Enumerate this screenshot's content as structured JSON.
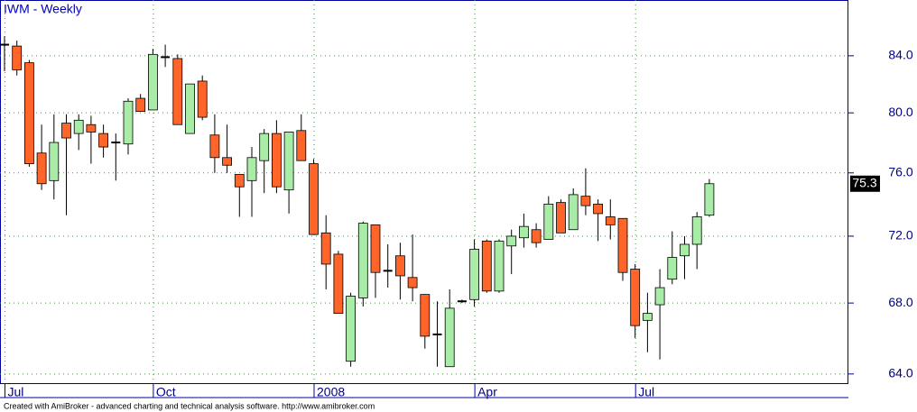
{
  "chart_data": {
    "type": "candlestick",
    "title": "IWM - Weekly",
    "footer": "Created with AmiBroker - advanced charting and technical analysis software. http://www.amibroker.com",
    "log_scale": true,
    "grid": true,
    "up_color": "#a8eca8",
    "down_color": "#ff6428",
    "doji_color": "#000000",
    "categories": [
      "Jul",
      null,
      null,
      null,
      null,
      null,
      null,
      null,
      null,
      null,
      null,
      null,
      "Oct",
      null,
      null,
      null,
      null,
      null,
      null,
      null,
      null,
      null,
      null,
      null,
      null,
      "2008",
      null,
      null,
      null,
      null,
      null,
      null,
      null,
      null,
      null,
      null,
      null,
      null,
      "Apr",
      null,
      null,
      null,
      null,
      null,
      null,
      null,
      null,
      null,
      null,
      null,
      null,
      "Jul",
      null,
      null,
      null,
      null,
      null,
      null
    ],
    "open": [
      84.8,
      84.7,
      83.5,
      77.3,
      75.5,
      79.3,
      78.6,
      79.2,
      78.6,
      78.0,
      77.9,
      81.0,
      80.2,
      83.9,
      83.8,
      78.6,
      82.2,
      78.5,
      77.0,
      75.9,
      75.5,
      76.8,
      78.6,
      74.9,
      78.8,
      76.6,
      72.2,
      70.9,
      64.7,
      68.3,
      72.7,
      69.9,
      70.8,
      69.5,
      68.5,
      66.2,
      64.4,
      68.1,
      68.2,
      71.7,
      68.7,
      71.4,
      71.9,
      72.4,
      71.8,
      74.1,
      72.4,
      74.5,
      74.0,
      73.2,
      73.1,
      70.0,
      67.0,
      67.9,
      69.4,
      70.8,
      71.5,
      73.3
    ],
    "high": [
      85.4,
      85.1,
      83.7,
      79.2,
      79.9,
      79.9,
      79.9,
      79.8,
      79.2,
      78.6,
      81.0,
      81.3,
      84.5,
      84.8,
      84.1,
      82.0,
      82.6,
      79.9,
      79.2,
      75.9,
      77.7,
      78.9,
      79.5,
      78.7,
      79.9,
      76.9,
      73.3,
      71.1,
      68.6,
      72.9,
      72.7,
      71.5,
      71.6,
      72.1,
      68.5,
      68.1,
      68.8,
      68.2,
      71.8,
      71.8,
      71.8,
      72.4,
      73.4,
      72.8,
      74.5,
      74.3,
      75.0,
      76.3,
      74.3,
      74.3,
      73.1,
      70.3,
      68.6,
      70.0,
      72.3,
      72.0,
      73.5,
      75.6
    ],
    "low": [
      82.9,
      82.6,
      76.4,
      74.9,
      74.3,
      73.3,
      77.5,
      76.6,
      77.0,
      75.5,
      77.2,
      80.1,
      80.2,
      83.2,
      79.2,
      78.6,
      79.5,
      76.0,
      76.0,
      73.2,
      73.2,
      74.7,
      74.7,
      73.4,
      76.8,
      72.1,
      68.8,
      67.4,
      64.4,
      67.8,
      68.3,
      68.9,
      68.2,
      68.1,
      65.4,
      64.4,
      64.4,
      68.0,
      67.8,
      68.6,
      68.6,
      69.7,
      71.3,
      71.3,
      71.8,
      72.2,
      72.4,
      73.3,
      71.7,
      71.8,
      69.3,
      66.0,
      65.2,
      64.8,
      69.1,
      69.4,
      70.0,
      73.2
    ],
    "close": [
      84.8,
      83.0,
      76.6,
      75.3,
      78.0,
      78.3,
      79.5,
      78.7,
      77.7,
      78.0,
      80.8,
      80.1,
      84.1,
      83.9,
      79.2,
      82.0,
      79.7,
      77.0,
      76.5,
      75.1,
      77.0,
      78.6,
      75.1,
      78.7,
      76.8,
      72.1,
      70.3,
      67.4,
      68.4,
      72.8,
      69.8,
      69.9,
      69.6,
      68.9,
      66.1,
      66.2,
      67.7,
      68.1,
      71.2,
      68.7,
      71.7,
      72.0,
      72.6,
      71.6,
      74.0,
      72.2,
      74.6,
      73.9,
      73.4,
      72.7,
      69.8,
      66.7,
      67.4,
      68.9,
      70.7,
      71.5,
      73.2,
      75.3
    ],
    "ylim": [
      63.5,
      88.1
    ],
    "yticks": [
      {
        "value": 64,
        "label": "64.0"
      },
      {
        "value": 68,
        "label": "68.0"
      },
      {
        "value": 72,
        "label": "72.0"
      },
      {
        "value": 76,
        "label": "76.0"
      },
      {
        "value": 80,
        "label": "80.0"
      },
      {
        "value": 84,
        "label": "84.0"
      }
    ]
  }
}
